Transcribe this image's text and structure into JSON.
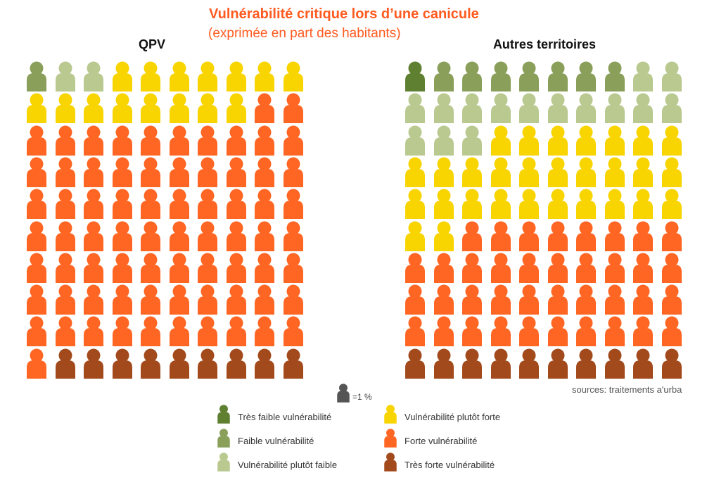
{
  "title": "Vulnérabilité critique lors d’une canicule",
  "subtitle": "(exprimée en part des habitants)",
  "unit_label": "=1 %",
  "sources": "sources: traitements a'urba",
  "chart_data": {
    "type": "pictogram",
    "unit": "1 icon = 1% of inhabitants",
    "categories": [
      "Très faible vulnérabilité",
      "Faible vulnérabilité",
      "Vulnérabilité plutôt faible",
      "Vulnérabilité plutôt forte",
      "Forte vulnérabilité",
      "Très forte vulnérabilité"
    ],
    "colors": [
      "#5e8030",
      "#8a9f5a",
      "#b9c98f",
      "#f8d400",
      "#ff6624",
      "#a34a1c"
    ],
    "panels": [
      {
        "title": "QPV",
        "values": [
          0,
          1,
          2,
          15,
          73,
          9
        ]
      },
      {
        "title": "Autres territoires",
        "values": [
          1,
          7,
          15,
          29,
          38,
          10
        ]
      }
    ]
  }
}
